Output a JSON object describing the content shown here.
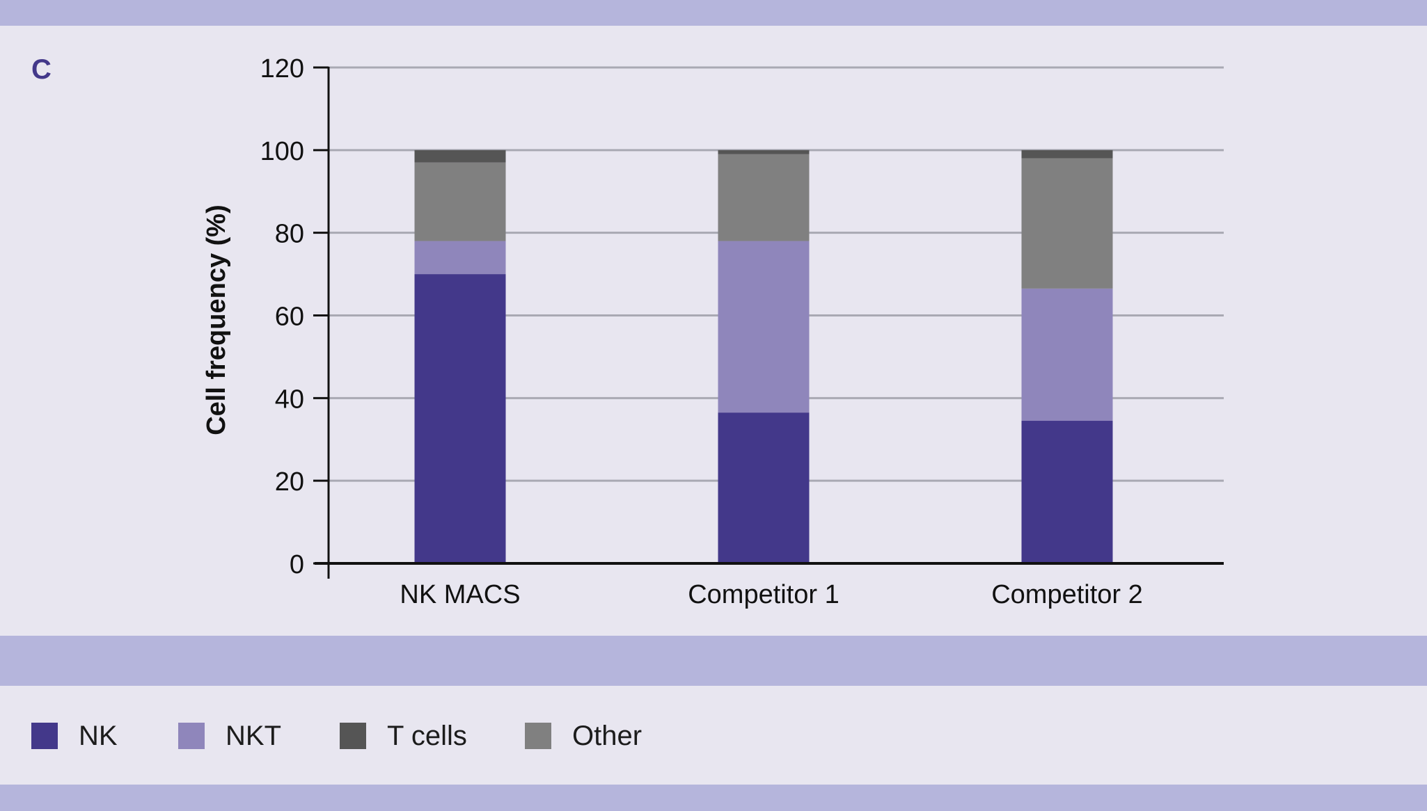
{
  "panel_label": "C",
  "chart_data": {
    "type": "bar",
    "stacked": true,
    "title": "",
    "xlabel": "",
    "ylabel": "Cell frequency (%)",
    "ylim": [
      0,
      120
    ],
    "yticks": [
      0,
      20,
      40,
      60,
      80,
      100,
      120
    ],
    "grid": true,
    "legend_position": "bottom",
    "categories": [
      "NK MACS",
      "Competitor 1",
      "Competitor 2"
    ],
    "series": [
      {
        "name": "NK",
        "color": "#43388a",
        "values": [
          70,
          36.5,
          34.5
        ]
      },
      {
        "name": "NKT",
        "color": "#8f86bb",
        "values": [
          8,
          41.5,
          32
        ]
      },
      {
        "name": "Other",
        "color": "#808080",
        "values": [
          19,
          21,
          31.5
        ]
      },
      {
        "name": "T cells",
        "color": "#555555",
        "values": [
          3,
          1,
          2
        ]
      }
    ]
  },
  "legend": [
    {
      "label": "NK",
      "color": "#43388a"
    },
    {
      "label": "NKT",
      "color": "#8f86bb"
    },
    {
      "label": "T cells",
      "color": "#555555"
    },
    {
      "label": "Other",
      "color": "#808080"
    }
  ]
}
